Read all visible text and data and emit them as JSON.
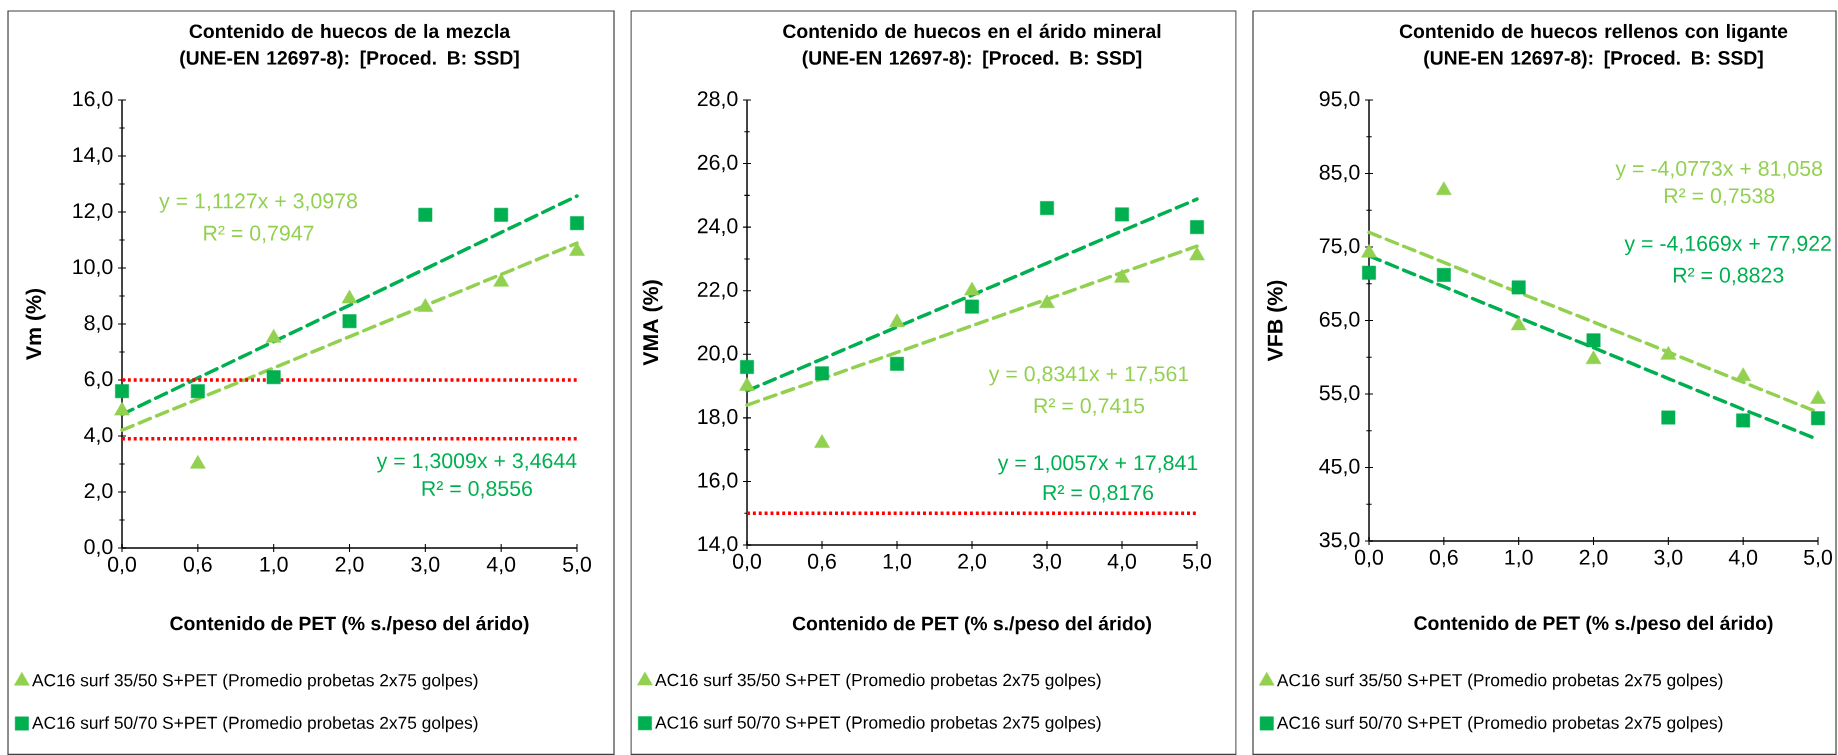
{
  "chart_data": [
    {
      "type": "scatter",
      "title": "Contenido de huecos de la mezcla (UNE-EN 12697-8): [Proced. B: SSD]",
      "xlabel": "Contenido de PET (% s./peso del árido)",
      "ylabel": "Vm (%)",
      "categories": [
        "0,0",
        "0,6",
        "1,0",
        "2,0",
        "3,0",
        "4,0",
        "5,0"
      ],
      "series": [
        {
          "name": "AC16 surf 35/50 S+PET (Promedio probetas 2x75 golpes)",
          "color": "#92d050",
          "marker": "triangle",
          "values": [
            4.9,
            3.0,
            7.5,
            8.9,
            8.6,
            9.5,
            10.6
          ]
        },
        {
          "name": "AC16 surf 50/70 S+PET (Promedio probetas 2x75 golpes)",
          "color": "#00b050",
          "marker": "square",
          "values": [
            5.6,
            5.6,
            6.1,
            8.1,
            11.9,
            11.9,
            11.6
          ]
        },
        {
          "type": "line",
          "color": "#92d050",
          "line_style": "dashed",
          "values": [
            4.21,
            5.32,
            6.43,
            7.55,
            8.66,
            9.77,
            10.89
          ]
        },
        {
          "type": "line",
          "color": "#00b050",
          "line_style": "dashed",
          "values": [
            4.77,
            6.07,
            7.37,
            8.67,
            9.97,
            11.27,
            12.57
          ]
        }
      ],
      "ylim": [
        0,
        16
      ],
      "yticks": [
        {
          "value": 0,
          "label": "0,0"
        },
        {
          "value": 2,
          "label": "2,0"
        },
        {
          "value": 4,
          "label": "4,0"
        },
        {
          "value": 6,
          "label": "6,0"
        },
        {
          "value": 8,
          "label": "8,0"
        },
        {
          "value": 10,
          "label": "10,0"
        },
        {
          "value": 12,
          "label": "12,0"
        },
        {
          "value": 14,
          "label": "14,0"
        },
        {
          "value": 16,
          "label": "16,0"
        }
      ],
      "ref_lines": [
        {
          "axis": "y",
          "value": 6,
          "color": "#ff0000",
          "line_style": "dotted"
        },
        {
          "axis": "y",
          "value": 3.9,
          "color": "#ff0000",
          "line_style": "dotted"
        }
      ],
      "annotations": [
        "y = 1,1127x + 3,0978",
        "R² = 0,7947",
        "y = 1,3009x + 3,4644",
        "R² = 0,8556"
      ],
      "legend": "bottom"
    },
    {
      "type": "scatter",
      "title": "Contenido de huecos en el árido mineral (UNE-EN 12697-8): [Proced. B: SSD]",
      "xlabel": "Contenido de PET (% s./peso del árido)",
      "ylabel": "VMA (%)",
      "categories": [
        "0,0",
        "0,6",
        "1,0",
        "2,0",
        "3,0",
        "4,0",
        "5,0"
      ],
      "series": [
        {
          "name": "AC16 surf 35/50 S+PET (Promedio probetas 2x75 golpes)",
          "color": "#92d050",
          "marker": "triangle",
          "values": [
            19.0,
            17.2,
            21.0,
            22.0,
            21.6,
            22.4,
            23.1
          ]
        },
        {
          "name": "AC16 surf 50/70 S+PET (Promedio probetas 2x75 golpes)",
          "color": "#00b050",
          "marker": "square",
          "values": [
            19.6,
            19.4,
            19.7,
            21.5,
            24.6,
            24.4,
            24.0
          ]
        },
        {
          "type": "line",
          "color": "#92d050",
          "line_style": "dashed",
          "values": [
            18.4,
            19.23,
            20.06,
            20.9,
            21.73,
            22.57,
            23.4
          ]
        },
        {
          "type": "line",
          "color": "#00b050",
          "line_style": "dashed",
          "values": [
            18.85,
            19.85,
            20.86,
            21.86,
            22.87,
            23.88,
            24.88
          ]
        }
      ],
      "ylim": [
        14,
        28
      ],
      "yticks": [
        {
          "value": 14,
          "label": "14,0"
        },
        {
          "value": 16,
          "label": "16,0"
        },
        {
          "value": 18,
          "label": "18,0"
        },
        {
          "value": 20,
          "label": "20,0"
        },
        {
          "value": 22,
          "label": "22,0"
        },
        {
          "value": 24,
          "label": "24,0"
        },
        {
          "value": 26,
          "label": "26,0"
        },
        {
          "value": 28,
          "label": "28,0"
        }
      ],
      "ref_lines": [
        {
          "axis": "y",
          "value": 15,
          "color": "#ff0000",
          "line_style": "dotted"
        }
      ],
      "annotations": [
        "y = 0,8341x + 17,561",
        "R² = 0,7415",
        "y = 1,0057x + 17,841",
        "R² = 0,8176"
      ],
      "legend": "bottom"
    },
    {
      "type": "scatter",
      "title": "Contenido de huecos rellenos con ligante (UNE-EN 12697-8): [Proced. B: SSD]",
      "xlabel": "Contenido de PET (% s./peso del árido)",
      "ylabel": "VFB (%)",
      "categories": [
        "0,0",
        "0,6",
        "1,0",
        "2,0",
        "3,0",
        "4,0",
        "5,0"
      ],
      "series": [
        {
          "name": "AC16 surf 35/50 S+PET (Promedio probetas 2x75 golpes)",
          "color": "#92d050",
          "marker": "triangle",
          "values": [
            74.2,
            82.7,
            64.3,
            59.7,
            60.3,
            57.4,
            54.3
          ]
        },
        {
          "name": "AC16 surf 50/70 S+PET (Promedio probetas 2x75 golpes)",
          "color": "#00b050",
          "marker": "square",
          "values": [
            71.5,
            71.2,
            69.5,
            62.3,
            51.8,
            51.4,
            51.7
          ]
        },
        {
          "type": "line",
          "color": "#92d050",
          "line_style": "dashed",
          "values": [
            77.0,
            72.9,
            68.8,
            64.8,
            60.7,
            56.6,
            52.5
          ]
        },
        {
          "type": "line",
          "color": "#00b050",
          "line_style": "dashed",
          "values": [
            73.8,
            69.6,
            65.4,
            61.3,
            57.1,
            52.9,
            48.8
          ]
        }
      ],
      "ylim": [
        35,
        95
      ],
      "yticks": [
        {
          "value": 35,
          "label": "35,0"
        },
        {
          "value": 45,
          "label": "45,0"
        },
        {
          "value": 55,
          "label": "55,0"
        },
        {
          "value": 65,
          "label": "65,0"
        },
        {
          "value": 75,
          "label": "75,0"
        },
        {
          "value": 85,
          "label": "85,0"
        },
        {
          "value": 95,
          "label": "95,0"
        }
      ],
      "annotations": [
        "y = -4,0773x + 81,058",
        "R² = 0,7538",
        "y = -4,1669x + 77,922",
        "R² = 0,8823"
      ],
      "legend": "bottom"
    }
  ]
}
